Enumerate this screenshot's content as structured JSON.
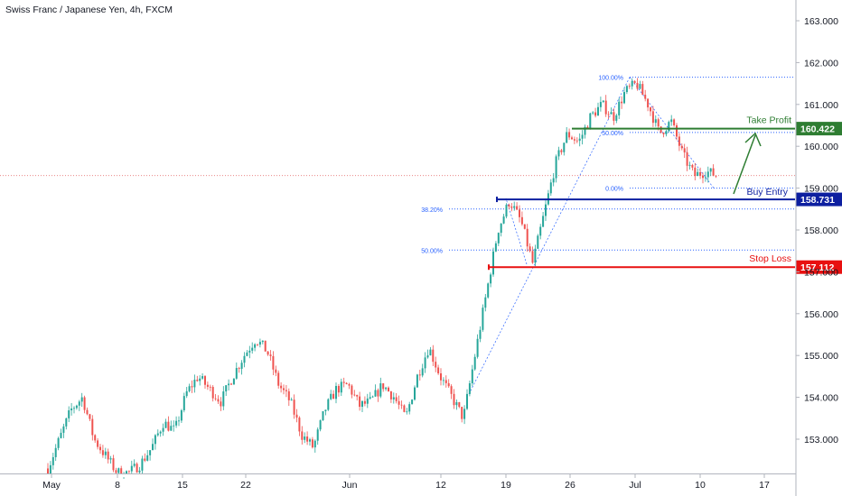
{
  "header": {
    "symbol_title": "Swiss Franc / Japanese Yen, 4h, FXCM"
  },
  "colors": {
    "up": "#26a69a",
    "down": "#ef5350",
    "take_profit": "#2e7d32",
    "buy_entry": "#0d1fa0",
    "stop_loss": "#e81010",
    "fib": "#2962ff",
    "axis_text": "#131722",
    "grid": "#e0e3eb"
  },
  "chart_data": {
    "type": "candlestick",
    "title": "Swiss Franc / Japanese Yen, 4h, FXCM",
    "x_tick_labels": [
      "May",
      "8",
      "15",
      "22",
      "Jun",
      "12",
      "19",
      "26",
      "Jul",
      "10",
      "17"
    ],
    "y_tick_labels": [
      "153.000",
      "154.000",
      "155.000",
      "156.000",
      "157.000",
      "158.000",
      "159.000",
      "160.000",
      "161.000",
      "162.000",
      "163.000"
    ],
    "ylim": [
      152.2,
      163.3
    ],
    "levels": [
      {
        "name": "Take Profit",
        "label": "Take Profit",
        "value": 160.422,
        "tag": "160.422"
      },
      {
        "name": "Buy Entry",
        "label": "Buy Entry",
        "value": 158.731,
        "tag": "158.731"
      },
      {
        "name": "Stop Loss",
        "label": "Stop Loss",
        "value": 157.112,
        "tag": "157.112"
      }
    ],
    "fib_retracements": [
      {
        "label": "100.00%",
        "value": 161.65
      },
      {
        "label": "50.00%",
        "value": 160.33
      },
      {
        "label": "0.00%",
        "value": 159.0
      },
      {
        "label": "38.20%",
        "value": 158.5
      },
      {
        "label": "50.00%",
        "value": 157.52
      }
    ],
    "current_price": 159.3,
    "price_path": [
      [
        152.3,
        153.0
      ],
      [
        153.7,
        154.0
      ],
      [
        153.0,
        152.6
      ],
      [
        152.2,
        152.2
      ],
      [
        152.4,
        152.8
      ],
      [
        153.4,
        153.2
      ],
      [
        154.1,
        154.5
      ],
      [
        154.2,
        153.9
      ],
      [
        154.5,
        155.0
      ],
      [
        155.4,
        155.1
      ],
      [
        154.3,
        153.9
      ],
      [
        153.1,
        152.8
      ],
      [
        153.7,
        154.2
      ],
      [
        154.3,
        153.8
      ],
      [
        153.9,
        154.3
      ],
      [
        154.0,
        153.5
      ],
      [
        154.5,
        155.2
      ],
      [
        154.5,
        154.0
      ],
      [
        153.5,
        155.0
      ],
      [
        156.5,
        158.0
      ],
      [
        158.7,
        158.2
      ],
      [
        157.2,
        158.4
      ],
      [
        159.6,
        160.3
      ],
      [
        160.1,
        160.7
      ],
      [
        161.0,
        160.7
      ],
      [
        161.3,
        161.5
      ],
      [
        161.0,
        160.3
      ],
      [
        160.6,
        159.8
      ],
      [
        159.3,
        159.4
      ],
      [
        159.3,
        159.3
      ]
    ]
  }
}
